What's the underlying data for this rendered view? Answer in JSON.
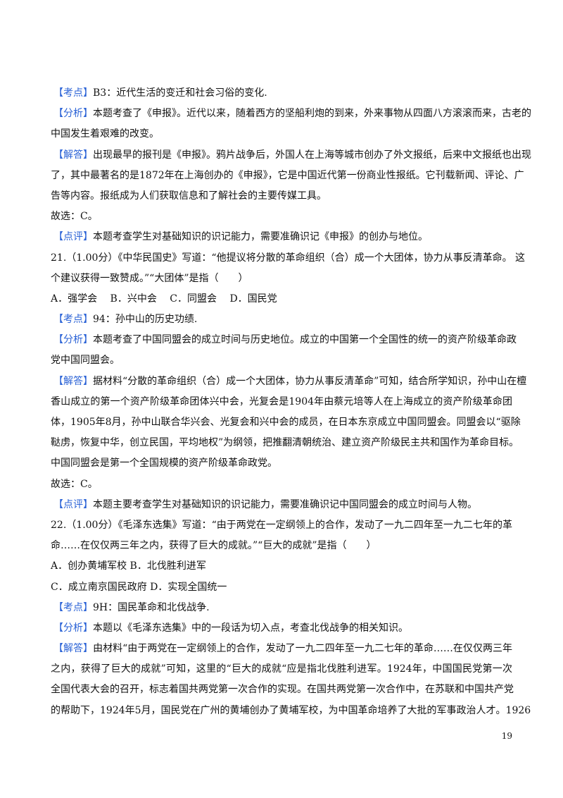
{
  "accent_color": "#2a62d6",
  "page_number": "19",
  "blocks": [
    {
      "tag": "【考点】",
      "lines": [
        "B3：近代生活的变迁和社会习俗的变化."
      ]
    },
    {
      "tag": "【分析】",
      "lines": [
        "本题考查了《申报》。近代以来，随着西方的坚船利炮的到来，外来事物从四面八方滚滚而来，古老的",
        "中国发生着艰难的改变。"
      ]
    },
    {
      "tag": "【解答】",
      "lines": [
        "出现最早的报刊是《申报》。鸦片战争后，外国人在上海等城市创办了外文报纸，后来中文报纸也出现",
        "了，其中最著名的是1872年在上海创办的《申报》，它是中国近代第一份商业性报纸。它刊载新闻、评论、广",
        "告等内容。报纸成为人们获取信息和了解社会的主要传媒工具。"
      ]
    },
    {
      "tag": "",
      "lines": [
        "故选：C。"
      ]
    },
    {
      "tag": "【点评】",
      "lines": [
        "本题考查学生对基础知识的识记能力，需要准确识记《申报》的创办与地位。"
      ]
    },
    {
      "tag": "",
      "lines": [
        "21.（1.00分）《中华民国史》写道：“他提议将分散的革命组织（合）成一个大团体，协力从事反清革命。 这",
        "个建议获得一致赞成。”“大团体”是指（　　）"
      ]
    },
    {
      "tag": "",
      "lines": [
        "A．强学会　 B．兴中会　 C．同盟会　 D．国民党"
      ]
    },
    {
      "tag": "【考点】",
      "lines": [
        "94：孙中山的历史功绩."
      ]
    },
    {
      "tag": "【分析】",
      "lines": [
        "本题考查了中国同盟会的成立时间与历史地位。成立的中国第一个全国性的统一的资产阶级革命政",
        "党中国同盟会。"
      ]
    },
    {
      "tag": "【解答】",
      "lines": [
        "据材料“分散的革命组织（合）成一个大团体，协力从事反清革命”可知，结合所学知识，孙中山在檀",
        "香山成立的第一个资产阶级革命团体兴中会，光复会是1904年由蔡元培等人在上海成立的资产阶级革命团",
        "体，1905年8月，孙中山联合华兴会、光复会和兴中会的成员，在日本东京成立中国同盟会。同盟会以“驱除",
        "鞑虏，恢复中华，创立民国，平均地权”为纲领，把推翻清朝统治、建立资产阶级民主共和国作为革命目标。",
        "中国同盟会是第一个全国规模的资产阶级革命政党。"
      ]
    },
    {
      "tag": "",
      "lines": [
        "故选：C。"
      ]
    },
    {
      "tag": "【点评】",
      "lines": [
        "本题主要考查学生对基础知识的识记能力，需要准确识记中国同盟会的成立时间与人物。"
      ]
    },
    {
      "tag": "",
      "lines": [
        "22.（1.00分）《毛泽东选集》写道：“由于两党在一定纲领上的合作，发动了一九二四年至一九二七年的革",
        "命……在仅仅两三年之内，获得了巨大的成就。”“巨大的成就”是指（　　）"
      ]
    },
    {
      "tag": "",
      "lines": [
        "A．创办黄埔军校 B．北伐胜利进军"
      ]
    },
    {
      "tag": "",
      "lines": [
        "C．成立南京国民政府 D．实现全国统一"
      ]
    },
    {
      "tag": "【考点】",
      "lines": [
        "9H：国民革命和北伐战争."
      ]
    },
    {
      "tag": "【分析】",
      "lines": [
        "本题以《毛泽东选集》中的一段话为切入点，考查北伐战争的相关知识。"
      ]
    },
    {
      "tag": "【解答】",
      "lines": [
        "由材料“由于两党在一定纲领上的合作，发动了一九二四年至一九二七年的革命……在仅仅两三年",
        "之内，获得了巨大的成就”可知，这里的“巨大的成就“应是指北伐胜利进军。1924年，中国国民党第一次",
        "全国代表大会的召开，标志着国共两党第一次合作的实现。在国共两党第一次合作中，在苏联和中国共产党",
        "的帮助下，1924年5月，国民党在广州的黄埔创办了黄埔军校，为中国革命培养了大批的军事政治人才。1926"
      ]
    }
  ]
}
